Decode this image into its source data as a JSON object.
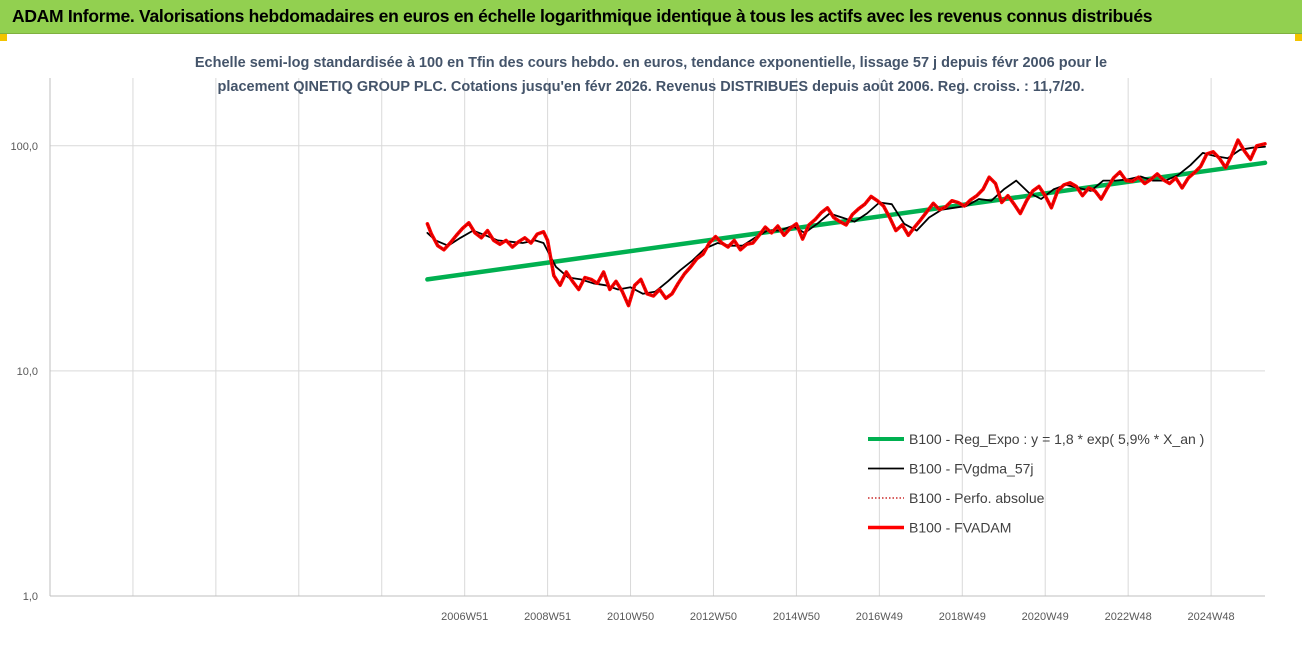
{
  "header": {
    "title": "ADAM Informe. Valorisations hebdomadaires en euros en échelle logarithmique identique à tous les actifs avec les revenus connus distribués",
    "background": "#92d050"
  },
  "chart_data": {
    "type": "line",
    "title_lines": [
      "Echelle semi-log standardisée à 100 en Tfin des cours hebdo. en euros, tendance exponentielle, lissage 57 j depuis févr 2006 pour le",
      "placement QINETIQ GROUP PLC. Cotations jusqu'en févr 2026. Revenus DISTRIBUES depuis août 2006. Reg. croiss. : 11,7/20."
    ],
    "y_scale": "log",
    "ylim": [
      1,
      200
    ],
    "y_ticks": [
      {
        "value": 1,
        "label": "1,0"
      },
      {
        "value": 10,
        "label": "10,0"
      },
      {
        "value": 100,
        "label": "100,0"
      }
    ],
    "xlim": [
      1997.0,
      2026.3
    ],
    "x_ticks": [
      {
        "x": 2007.0,
        "label": "2006W51"
      },
      {
        "x": 2009.0,
        "label": "2008W51"
      },
      {
        "x": 2011.0,
        "label": "2010W50"
      },
      {
        "x": 2013.0,
        "label": "2012W50"
      },
      {
        "x": 2015.0,
        "label": "2014W50"
      },
      {
        "x": 2017.0,
        "label": "2016W49"
      },
      {
        "x": 2019.0,
        "label": "2018W49"
      },
      {
        "x": 2021.0,
        "label": "2020W49"
      },
      {
        "x": 2023.0,
        "label": "2022W48"
      },
      {
        "x": 2025.0,
        "label": "2024W48"
      }
    ],
    "grid": {
      "vertical": true,
      "horizontal": true
    },
    "legend_position": "bottom-right",
    "series": [
      {
        "name": "B100 - Reg_Expo : y = 1,8 * exp( 5,9% *  X_an )",
        "color": "#00b050",
        "style": "solid",
        "width": 4.5,
        "x": [
          2006.1,
          2026.3
        ],
        "y": [
          25.5,
          84.0
        ]
      },
      {
        "name": "B100 - FVgdma_57j",
        "color": "#000000",
        "style": "solid",
        "width": 1.8,
        "x": [
          2006.1,
          2006.3,
          2006.6,
          2006.9,
          2007.2,
          2007.5,
          2007.8,
          2008.1,
          2008.4,
          2008.7,
          2008.9,
          2009.2,
          2009.5,
          2009.8,
          2010.1,
          2010.4,
          2010.7,
          2011.0,
          2011.3,
          2011.6,
          2011.9,
          2012.2,
          2012.5,
          2012.8,
          2013.1,
          2013.4,
          2013.7,
          2014.0,
          2014.3,
          2014.6,
          2014.9,
          2015.2,
          2015.5,
          2015.8,
          2016.1,
          2016.4,
          2016.7,
          2017.0,
          2017.3,
          2017.6,
          2017.9,
          2018.2,
          2018.5,
          2018.8,
          2019.1,
          2019.4,
          2019.7,
          2020.0,
          2020.3,
          2020.6,
          2020.9,
          2021.2,
          2021.5,
          2021.8,
          2022.1,
          2022.4,
          2022.7,
          2023.0,
          2023.3,
          2023.6,
          2023.9,
          2024.2,
          2024.5,
          2024.8,
          2025.1,
          2025.4,
          2025.7,
          2026.0,
          2026.3
        ],
        "y": [
          41.0,
          38.0,
          36.0,
          39.0,
          42.0,
          40.0,
          38.0,
          37.5,
          37.0,
          38.0,
          37.0,
          29.0,
          26.0,
          25.5,
          24.5,
          24.0,
          23.0,
          23.5,
          22.0,
          22.5,
          25.0,
          28.0,
          31.0,
          35.0,
          37.0,
          36.0,
          36.0,
          39.0,
          42.0,
          42.0,
          44.0,
          41.0,
          45.0,
          50.0,
          48.0,
          46.0,
          50.0,
          56.0,
          55.0,
          45.0,
          42.0,
          48.0,
          52.0,
          53.0,
          54.0,
          58.0,
          57.0,
          64.0,
          70.0,
          62.0,
          58.0,
          64.0,
          67.0,
          65.0,
          63.0,
          70.0,
          70.0,
          71.0,
          73.0,
          70.0,
          70.0,
          74.0,
          82.0,
          93.0,
          90.0,
          88.0,
          96.0,
          98.0,
          99.0
        ]
      },
      {
        "name": "B100 - Perfo. absolue",
        "color": "#c00000",
        "style": "dotted",
        "width": 1.2,
        "x": [
          2006.1,
          2006.2,
          2006.35,
          2006.5,
          2006.65,
          2006.8,
          2006.95,
          2007.1,
          2007.25,
          2007.4,
          2007.55,
          2007.7,
          2007.85,
          2008.0,
          2008.15,
          2008.3,
          2008.45,
          2008.6,
          2008.75,
          2008.9,
          2009.0,
          2009.15,
          2009.3,
          2009.45,
          2009.6,
          2009.75,
          2009.9,
          2010.05,
          2010.2,
          2010.35,
          2010.5,
          2010.65,
          2010.8,
          2010.95,
          2011.1,
          2011.25,
          2011.4,
          2011.55,
          2011.7,
          2011.85,
          2012.0,
          2012.15,
          2012.3,
          2012.45,
          2012.6,
          2012.75,
          2012.9,
          2013.05,
          2013.2,
          2013.35,
          2013.5,
          2013.65,
          2013.8,
          2013.95,
          2014.1,
          2014.25,
          2014.4,
          2014.55,
          2014.7,
          2014.85,
          2015.0,
          2015.15,
          2015.3,
          2015.45,
          2015.6,
          2015.75,
          2015.9,
          2016.05,
          2016.2,
          2016.35,
          2016.5,
          2016.65,
          2016.8,
          2016.95,
          2017.1,
          2017.25,
          2017.4,
          2017.55,
          2017.7,
          2017.85,
          2018.0,
          2018.15,
          2018.3,
          2018.45,
          2018.6,
          2018.75,
          2018.9,
          2019.05,
          2019.2,
          2019.35,
          2019.5,
          2019.65,
          2019.8,
          2019.95,
          2020.1,
          2020.25,
          2020.4,
          2020.55,
          2020.7,
          2020.85,
          2021.0,
          2021.15,
          2021.3,
          2021.45,
          2021.6,
          2021.75,
          2021.9,
          2022.05,
          2022.2,
          2022.35,
          2022.5,
          2022.65,
          2022.8,
          2022.95,
          2023.1,
          2023.25,
          2023.4,
          2023.55,
          2023.7,
          2023.85,
          2024.0,
          2024.15,
          2024.3,
          2024.45,
          2024.6,
          2024.75,
          2024.9,
          2025.05,
          2025.2,
          2025.35,
          2025.5,
          2025.65,
          2025.8,
          2025.95,
          2026.1,
          2026.3
        ],
        "y": [
          45.0,
          40.5,
          36.0,
          34.5,
          37.0,
          40.0,
          43.0,
          45.5,
          41.0,
          39.0,
          42.0,
          38.0,
          36.5,
          38.0,
          35.5,
          37.5,
          39.0,
          37.0,
          40.5,
          41.5,
          38.0,
          26.5,
          24.0,
          27.5,
          25.0,
          23.0,
          26.0,
          25.5,
          24.5,
          27.5,
          23.0,
          25.0,
          22.5,
          19.5,
          24.0,
          25.5,
          22.0,
          21.5,
          23.0,
          21.0,
          22.0,
          24.5,
          27.0,
          29.0,
          31.5,
          33.0,
          37.0,
          39.5,
          37.0,
          35.5,
          38.0,
          34.5,
          36.5,
          37.0,
          40.0,
          43.5,
          41.0,
          44.0,
          40.0,
          43.0,
          45.0,
          38.5,
          44.5,
          47.0,
          50.5,
          53.0,
          48.0,
          46.0,
          44.5,
          49.5,
          52.5,
          55.0,
          59.5,
          57.0,
          54.0,
          48.0,
          42.0,
          44.5,
          40.0,
          43.5,
          47.0,
          51.0,
          55.5,
          52.0,
          53.5,
          57.0,
          56.0,
          54.0,
          57.5,
          60.0,
          64.0,
          72.5,
          68.0,
          56.0,
          60.0,
          55.0,
          50.0,
          57.0,
          63.0,
          66.0,
          60.0,
          53.0,
          63.0,
          67.0,
          68.5,
          66.0,
          60.0,
          65.0,
          63.0,
          58.0,
          65.0,
          72.0,
          76.5,
          70.0,
          69.5,
          72.5,
          68.0,
          71.0,
          75.0,
          70.5,
          68.0,
          72.0,
          65.0,
          72.0,
          76.0,
          81.0,
          92.0,
          94.0,
          88.0,
          80.0,
          91.0,
          106.0,
          95.0,
          87.0,
          100.0,
          102.0
        ]
      },
      {
        "name": "B100 - FVADAM",
        "color": "#ff0000",
        "style": "solid",
        "width": 3.5,
        "x": [
          2006.1,
          2006.2,
          2006.35,
          2006.5,
          2006.65,
          2006.8,
          2006.95,
          2007.1,
          2007.25,
          2007.4,
          2007.55,
          2007.7,
          2007.85,
          2008.0,
          2008.15,
          2008.3,
          2008.45,
          2008.6,
          2008.75,
          2008.9,
          2009.0,
          2009.15,
          2009.3,
          2009.45,
          2009.6,
          2009.75,
          2009.9,
          2010.05,
          2010.2,
          2010.35,
          2010.5,
          2010.65,
          2010.8,
          2010.95,
          2011.1,
          2011.25,
          2011.4,
          2011.55,
          2011.7,
          2011.85,
          2012.0,
          2012.15,
          2012.3,
          2012.45,
          2012.6,
          2012.75,
          2012.9,
          2013.05,
          2013.2,
          2013.35,
          2013.5,
          2013.65,
          2013.8,
          2013.95,
          2014.1,
          2014.25,
          2014.4,
          2014.55,
          2014.7,
          2014.85,
          2015.0,
          2015.15,
          2015.3,
          2015.45,
          2015.6,
          2015.75,
          2015.9,
          2016.05,
          2016.2,
          2016.35,
          2016.5,
          2016.65,
          2016.8,
          2016.95,
          2017.1,
          2017.25,
          2017.4,
          2017.55,
          2017.7,
          2017.85,
          2018.0,
          2018.15,
          2018.3,
          2018.45,
          2018.6,
          2018.75,
          2018.9,
          2019.05,
          2019.2,
          2019.35,
          2019.5,
          2019.65,
          2019.8,
          2019.95,
          2020.1,
          2020.25,
          2020.4,
          2020.55,
          2020.7,
          2020.85,
          2021.0,
          2021.15,
          2021.3,
          2021.45,
          2021.6,
          2021.75,
          2021.9,
          2022.05,
          2022.2,
          2022.35,
          2022.5,
          2022.65,
          2022.8,
          2022.95,
          2023.1,
          2023.25,
          2023.4,
          2023.55,
          2023.7,
          2023.85,
          2024.0,
          2024.15,
          2024.3,
          2024.45,
          2024.6,
          2024.75,
          2024.9,
          2025.05,
          2025.2,
          2025.35,
          2025.5,
          2025.65,
          2025.8,
          2025.95,
          2026.1,
          2026.3
        ],
        "y": [
          45.0,
          40.5,
          36.0,
          34.5,
          37.0,
          40.0,
          43.0,
          45.5,
          41.0,
          39.0,
          42.0,
          38.0,
          36.5,
          38.0,
          35.5,
          37.5,
          39.0,
          37.0,
          40.5,
          41.5,
          38.0,
          26.5,
          24.0,
          27.5,
          25.0,
          23.0,
          26.0,
          25.5,
          24.5,
          27.5,
          23.0,
          25.0,
          22.5,
          19.5,
          24.0,
          25.5,
          22.0,
          21.5,
          23.0,
          21.0,
          22.0,
          24.5,
          27.0,
          29.0,
          31.5,
          33.0,
          37.0,
          39.5,
          37.0,
          35.5,
          38.0,
          34.5,
          36.5,
          37.0,
          40.0,
          43.5,
          41.0,
          44.0,
          40.0,
          43.0,
          45.0,
          38.5,
          44.5,
          47.0,
          50.5,
          53.0,
          48.0,
          46.0,
          44.5,
          49.5,
          52.5,
          55.0,
          59.5,
          57.0,
          54.0,
          48.0,
          42.0,
          44.5,
          40.0,
          43.5,
          47.0,
          51.0,
          55.5,
          52.0,
          53.5,
          57.0,
          56.0,
          54.0,
          57.5,
          60.0,
          64.0,
          72.5,
          68.0,
          56.0,
          60.0,
          55.0,
          50.0,
          57.0,
          63.0,
          66.0,
          60.0,
          53.0,
          63.0,
          67.0,
          68.5,
          66.0,
          60.0,
          65.0,
          63.0,
          58.0,
          65.0,
          72.0,
          76.5,
          70.0,
          69.5,
          72.5,
          68.0,
          71.0,
          75.0,
          70.5,
          68.0,
          72.0,
          65.0,
          72.0,
          76.0,
          81.0,
          92.0,
          94.0,
          88.0,
          80.0,
          91.0,
          106.0,
          95.0,
          87.0,
          100.0,
          102.0
        ]
      }
    ],
    "legend_order": [
      0,
      1,
      2,
      3
    ]
  }
}
